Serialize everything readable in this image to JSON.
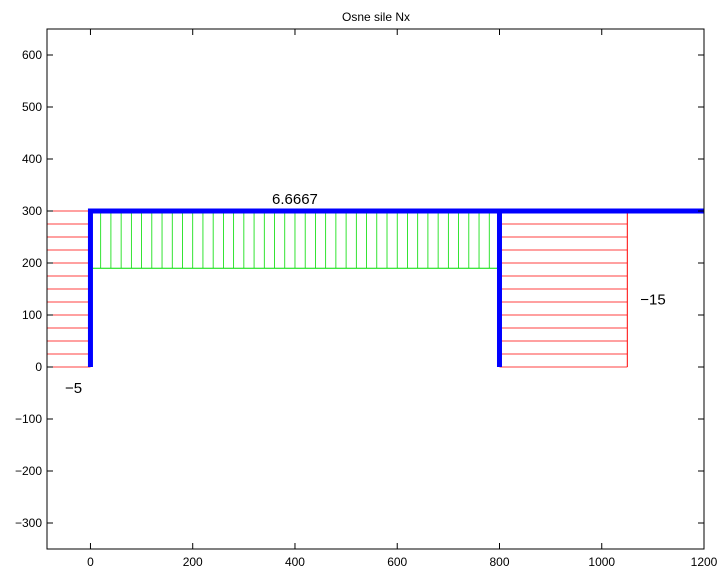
{
  "chart_data": {
    "type": "line",
    "title": "Osne sile Nx",
    "xlabel": "",
    "ylabel": "",
    "xlim": [
      -85,
      1200
    ],
    "ylim": [
      -350,
      650
    ],
    "x_ticks": [
      0,
      200,
      400,
      600,
      800,
      1000,
      1200
    ],
    "y_ticks": [
      -300,
      -200,
      -100,
      0,
      100,
      200,
      300,
      400,
      500,
      600
    ],
    "grid": false,
    "structure": {
      "name": "frame",
      "color": "#0000ff",
      "points": [
        [
          0,
          0
        ],
        [
          0,
          300
        ],
        [
          800,
          300
        ],
        [
          800,
          0
        ]
      ],
      "beam_extension": [
        [
          800,
          300
        ],
        [
          1200,
          300
        ]
      ]
    },
    "force_diagrams": [
      {
        "member": "left-column",
        "value": -5,
        "label": "−5",
        "color": "#ff0000",
        "hatch": "horizontal",
        "x_from": -85,
        "x_to": 0,
        "y_from": 0,
        "y_to": 300
      },
      {
        "member": "beam",
        "value": 6.6667,
        "label": "6.6667",
        "color": "#00dd00",
        "hatch": "vertical",
        "x_from": 0,
        "x_to": 800,
        "y_from": 190,
        "y_to": 300
      },
      {
        "member": "right-column",
        "value": -15,
        "label": "−15",
        "color": "#ff0000",
        "hatch": "horizontal",
        "x_from": 800,
        "x_to": 1050,
        "y_from": 0,
        "y_to": 300
      }
    ]
  }
}
